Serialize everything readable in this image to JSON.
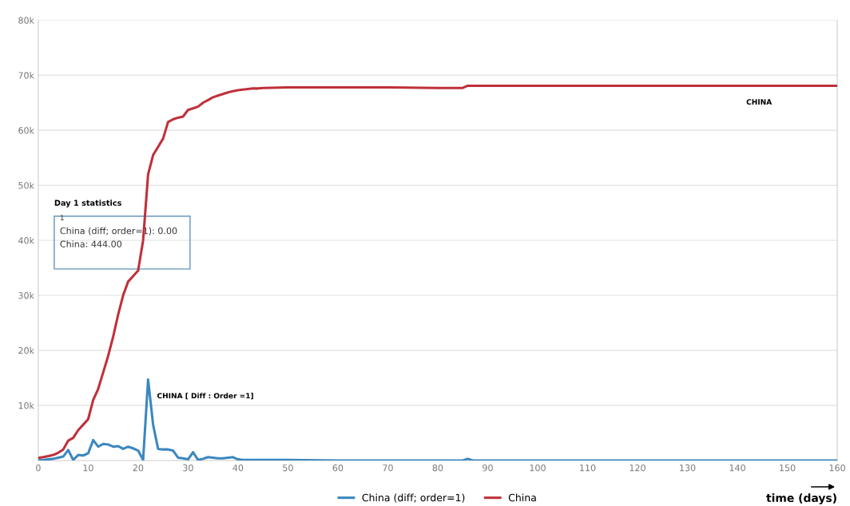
{
  "chart_data": {
    "type": "line",
    "xlabel": "time (days)",
    "x": [
      0,
      1,
      2,
      3,
      4,
      5,
      6,
      7,
      8,
      9,
      10,
      11,
      12,
      13,
      14,
      15,
      16,
      17,
      18,
      19,
      20,
      21,
      22,
      23,
      24,
      25,
      26,
      27,
      28,
      29,
      30,
      31,
      32,
      33,
      34,
      35,
      36,
      37,
      38,
      39,
      40,
      41,
      42,
      43,
      44,
      45,
      50,
      60,
      70,
      80,
      85,
      86,
      87,
      90,
      100,
      110,
      120,
      130,
      140,
      150,
      160
    ],
    "series": [
      {
        "name": "China (diff; order=1)",
        "color": "#3a87c0",
        "values": [
          0,
          100,
          200,
          300,
          500,
          700,
          1900,
          100,
          1000,
          900,
          1300,
          3700,
          2500,
          3000,
          2900,
          2500,
          2600,
          2100,
          2500,
          2200,
          1800,
          100,
          14700,
          6500,
          2100,
          2000,
          2000,
          1800,
          500,
          400,
          200,
          1500,
          100,
          300,
          600,
          500,
          400,
          400,
          500,
          600,
          200,
          100,
          100,
          100,
          100,
          100,
          100,
          0,
          0,
          0,
          0,
          300,
          0,
          0,
          0,
          0,
          0,
          0,
          0,
          0,
          0
        ]
      },
      {
        "name": "China",
        "color": "#c0303a",
        "values": [
          444,
          600,
          800,
          1000,
          1400,
          2000,
          3600,
          4100,
          5500,
          6500,
          7500,
          11000,
          13000,
          16000,
          19000,
          22500,
          26500,
          30000,
          32500,
          33500,
          34500,
          40000,
          52000,
          55500,
          57000,
          58500,
          61500,
          62000,
          62300,
          62500,
          63700,
          64000,
          64300,
          65000,
          65500,
          66000,
          66300,
          66600,
          66900,
          67100,
          67300,
          67400,
          67500,
          67600,
          67600,
          67700,
          67800,
          67800,
          67800,
          67700,
          67700,
          68100,
          68100,
          68100,
          68100,
          68100,
          68100,
          68100,
          68100,
          68100,
          68100
        ]
      }
    ],
    "xlim": [
      0,
      160
    ],
    "xticks": [
      0,
      10,
      20,
      30,
      40,
      50,
      60,
      70,
      80,
      90,
      100,
      110,
      120,
      130,
      140,
      150,
      160
    ],
    "ylim": [
      0,
      80000
    ],
    "yticks": [
      {
        "value": 10000,
        "label": "10k"
      },
      {
        "value": 20000,
        "label": "20k"
      },
      {
        "value": 30000,
        "label": "30k"
      },
      {
        "value": 40000,
        "label": "40k"
      },
      {
        "value": 50000,
        "label": "50k"
      },
      {
        "value": 60000,
        "label": "60k"
      },
      {
        "value": 70000,
        "label": "70k"
      },
      {
        "value": 80000,
        "label": "80k"
      }
    ],
    "grid": "y",
    "legend": "bottom",
    "marker": "none",
    "line_style": "solid",
    "annotations": [
      "Day 1 statistics",
      "1",
      "China (diff; order=1): 0.00",
      "China: 444.00",
      {
        "text": "CHINA",
        "x": 140,
        "y": 68100
      },
      {
        "text": "CHINA [ Diff : Order =1]",
        "x": 22,
        "y": 14700
      }
    ]
  }
}
